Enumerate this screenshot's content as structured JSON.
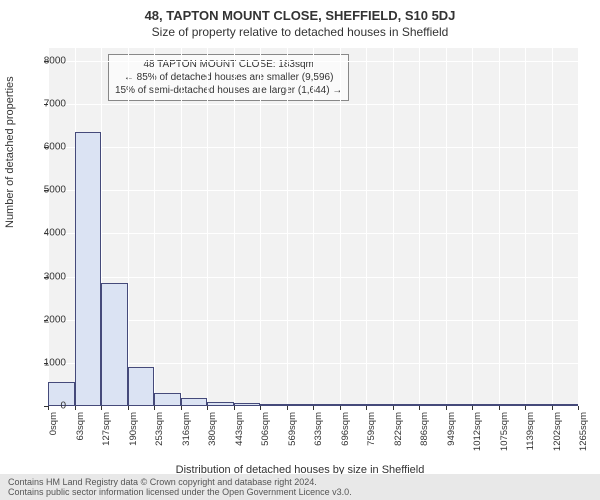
{
  "chart": {
    "type": "histogram",
    "title_main": "48, TAPTON MOUNT CLOSE, SHEFFIELD, S10 5DJ",
    "subtitle": "Size of property relative to detached houses in Sheffield",
    "y_axis_label": "Number of detached properties",
    "x_axis_label": "Distribution of detached houses by size in Sheffield",
    "background_color": "#f2f2f2",
    "grid_color": "#ffffff",
    "bar_fill": "#dbe3f3",
    "bar_border": "#454a7a",
    "y_ticks": [
      0,
      1000,
      2000,
      3000,
      4000,
      5000,
      6000,
      7000,
      8000
    ],
    "y_max": 8300,
    "x_tick_labels": [
      "0sqm",
      "63sqm",
      "127sqm",
      "190sqm",
      "253sqm",
      "316sqm",
      "380sqm",
      "443sqm",
      "506sqm",
      "569sqm",
      "633sqm",
      "696sqm",
      "759sqm",
      "822sqm",
      "886sqm",
      "949sqm",
      "1012sqm",
      "1075sqm",
      "1139sqm",
      "1202sqm",
      "1265sqm"
    ],
    "bars": [
      550,
      6350,
      2850,
      900,
      300,
      180,
      100,
      70,
      50,
      35,
      25,
      20,
      15,
      12,
      10,
      8,
      6,
      5,
      4,
      3
    ],
    "callout": {
      "line1": "48 TAPTON MOUNT CLOSE: 183sqm",
      "line2": "← 85% of detached houses are smaller (9,596)",
      "line3": "15% of semi-detached houses are larger (1,644) →"
    }
  },
  "footer": {
    "line1": "Contains HM Land Registry data © Crown copyright and database right 2024.",
    "line2": "Contains public sector information licensed under the Open Government Licence v3.0."
  }
}
